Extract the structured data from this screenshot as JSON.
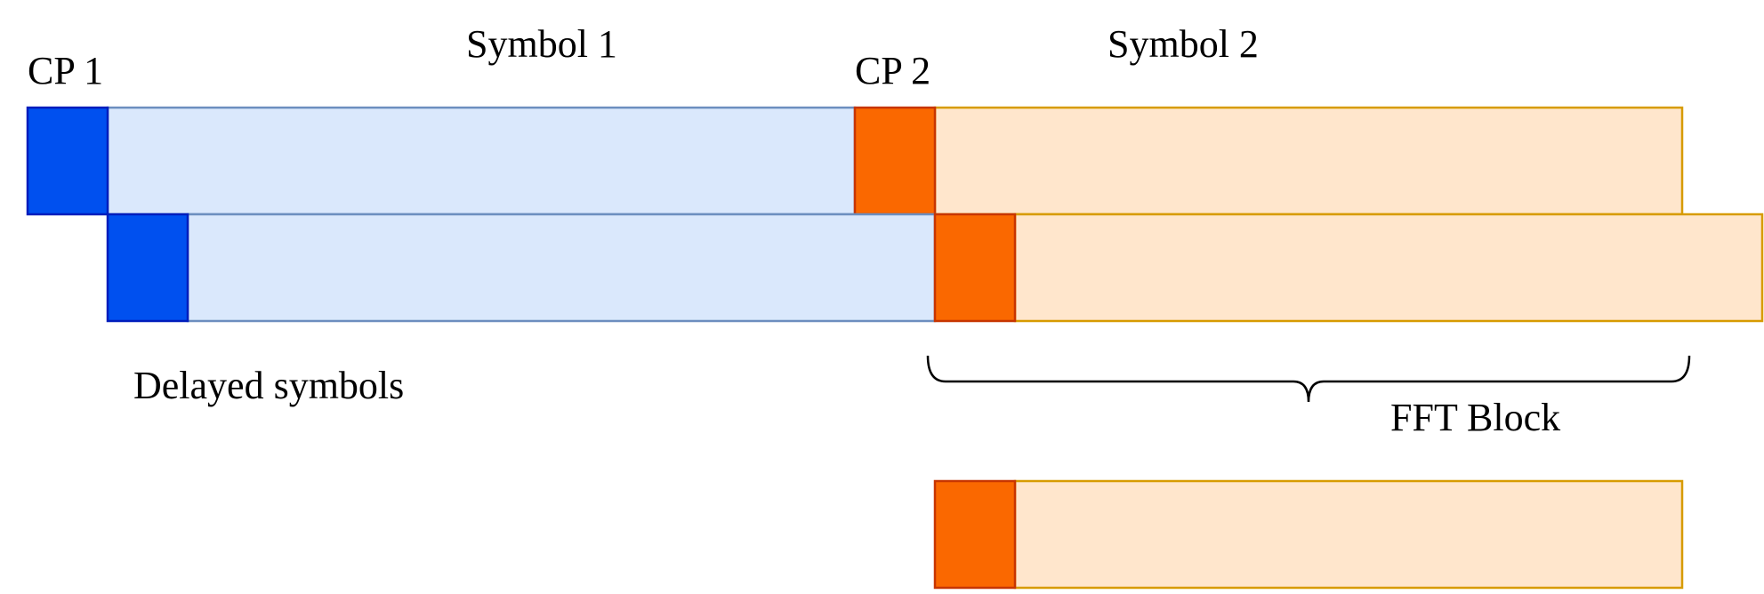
{
  "labels": {
    "cp1": "CP 1",
    "symbol1": "Symbol 1",
    "cp2": "CP 2",
    "symbol2": "Symbol 2",
    "delayed": "Delayed symbols",
    "fft_block": "FFT Block"
  },
  "colors": {
    "cp1_fill": "#0050EF",
    "cp1_stroke": "#001DBC",
    "symbol1_fill": "#DAE8FC",
    "symbol1_stroke": "#6C8EBF",
    "cp2_fill": "#FA6800",
    "cp2_stroke": "#C73500",
    "symbol2_fill": "#FFE6CC",
    "symbol2_stroke": "#D79B00",
    "brace": "#000000"
  }
}
